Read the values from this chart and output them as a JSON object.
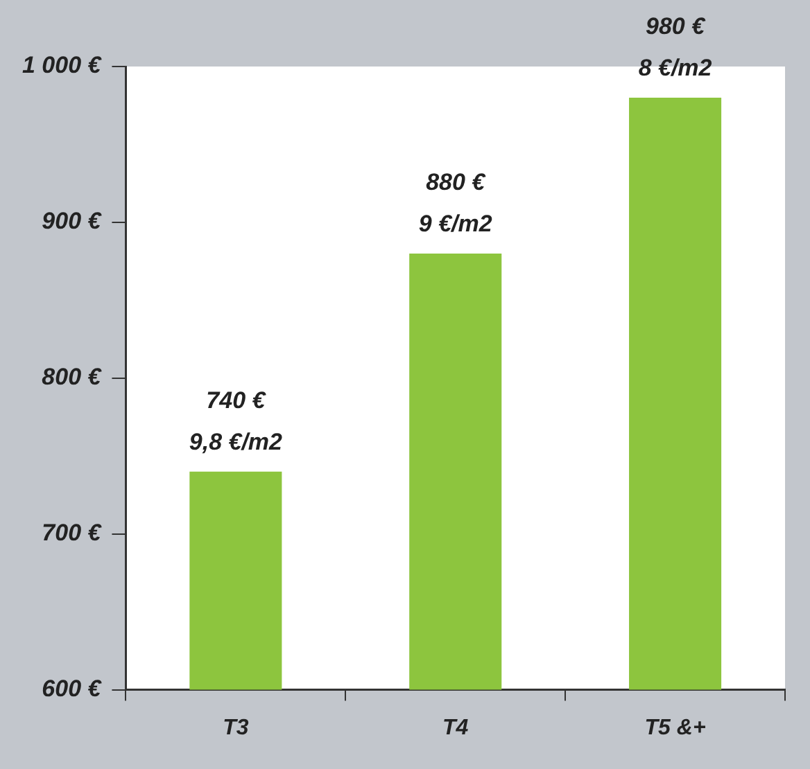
{
  "chart_data": {
    "type": "bar",
    "categories": [
      "T3",
      "T4",
      "T5 &+"
    ],
    "values": [
      740,
      880,
      980
    ],
    "color": "#8dc53e",
    "value_labels": [
      "740 €\n9,8 €/m2",
      "880 €\n9 €/m2",
      "980 €\n8 €/m2"
    ],
    "ylim": [
      600,
      1000
    ],
    "yticks": [
      {
        "value": 600,
        "label": "600 €"
      },
      {
        "value": 700,
        "label": "700 €"
      },
      {
        "value": 800,
        "label": "800 €"
      },
      {
        "value": 900,
        "label": "900 €"
      },
      {
        "value": 1000,
        "label": "1 000 €"
      }
    ],
    "grid": false,
    "legend": false
  }
}
